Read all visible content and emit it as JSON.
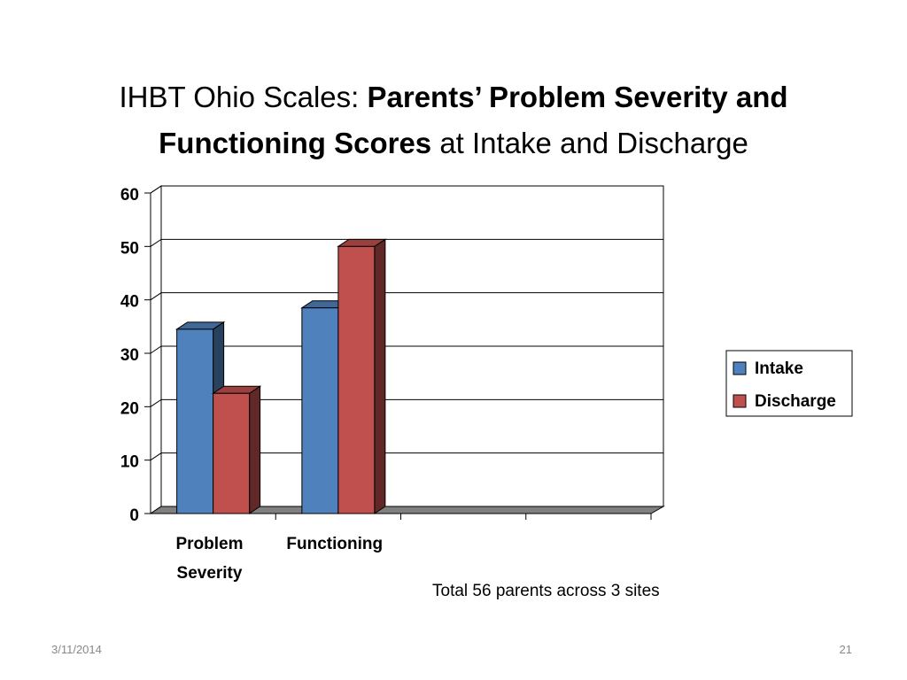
{
  "chart_data": {
    "type": "bar3d",
    "title": [
      {
        "text": "IHBT Ohio Scales: ",
        "bold": false
      },
      {
        "text": "Parents’  Problem Severity and",
        "bold": true
      },
      {
        "text": "Functioning Scores",
        "bold": true
      },
      {
        "text": " at Intake and Discharge",
        "bold": false
      }
    ],
    "categories": [
      "Problem Severity",
      "Functioning",
      null,
      null
    ],
    "series": [
      {
        "name": "Intake",
        "color": "#4f81bd",
        "values": [
          34.5,
          38.5,
          null,
          null
        ]
      },
      {
        "name": "Discharge",
        "color": "#c0504d",
        "values": [
          22.5,
          50,
          null,
          null
        ]
      }
    ],
    "ylim": [
      0,
      60
    ],
    "yticks": [
      0,
      10,
      20,
      30,
      40,
      50,
      60
    ],
    "grid": true,
    "legend": "right",
    "annotation": "Total 56 parents across 3 sites",
    "date": "3/11/2014",
    "page_number": "21"
  }
}
